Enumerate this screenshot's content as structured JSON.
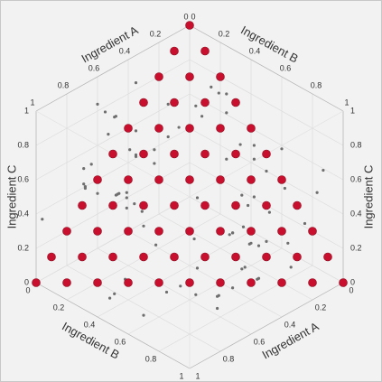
{
  "chart_data": {
    "type": "scatter3d",
    "x_label": "Ingredient A",
    "y_label": "Ingredient B",
    "z_label": "Ingredient C",
    "xlim": [
      0,
      1
    ],
    "ylim": [
      0,
      1
    ],
    "zlim": [
      0,
      1
    ],
    "xticks": [
      0,
      0.2,
      0.4,
      0.6,
      0.8,
      1
    ],
    "yticks": [
      0,
      0.2,
      0.4,
      0.6,
      0.8,
      1
    ],
    "zticks": [
      0,
      0.2,
      0.4,
      0.6,
      0.8,
      1
    ],
    "grid": true,
    "series": [
      {
        "color": "#6e6e6e",
        "size": 1.6,
        "x": [
          0.12,
          0.85,
          0.43,
          0.67,
          0.29,
          0.91,
          0.05,
          0.56,
          0.38,
          0.74,
          0.18,
          0.62,
          0.95,
          0.33,
          0.47,
          0.81,
          0.09,
          0.26,
          0.71,
          0.53,
          0.15,
          0.88,
          0.41,
          0.64,
          0.02,
          0.77,
          0.35,
          0.58,
          0.93,
          0.21,
          0.49,
          0.69,
          0.11,
          0.84,
          0.31,
          0.6,
          0.97,
          0.44,
          0.07,
          0.73,
          0.27,
          0.52,
          0.86,
          0.17,
          0.66,
          0.39,
          0.79,
          0.04,
          0.55,
          0.24,
          0.9,
          0.46,
          0.13,
          0.7,
          0.36,
          0.82,
          0.2,
          0.59,
          0.99,
          0.32,
          0.5,
          0.76,
          0.08,
          0.63,
          0.42,
          0.87,
          0.25,
          0.57,
          0.14,
          0.94,
          0.37,
          0.68,
          0.03,
          0.8,
          0.45,
          0.61,
          0.23,
          0.89,
          0.34,
          0.72
        ],
        "y": [
          0.54,
          0.21,
          0.88,
          0.07,
          0.63,
          0.39,
          0.92,
          0.15,
          0.71,
          0.33,
          0.46,
          0.98,
          0.26,
          0.59,
          0.12,
          0.84,
          0.37,
          0.68,
          0.03,
          0.77,
          0.5,
          0.19,
          0.81,
          0.41,
          0.66,
          0.09,
          0.95,
          0.28,
          0.57,
          0.73,
          0.14,
          0.87,
          0.35,
          0.62,
          0.24,
          0.79,
          0.01,
          0.48,
          0.9,
          0.31,
          0.69,
          0.06,
          0.55,
          0.83,
          0.17,
          0.44,
          0.97,
          0.23,
          0.6,
          0.38,
          0.75,
          0.11,
          0.52,
          0.29,
          0.86,
          0.43,
          0.65,
          0.04,
          0.93,
          0.18,
          0.36,
          0.8,
          0.58,
          0.1,
          0.7,
          0.27,
          0.49,
          0.91,
          0.22,
          0.64,
          0.02,
          0.45,
          0.78,
          0.32,
          0.89,
          0.13,
          0.61,
          0.4,
          0.96,
          0.25
        ],
        "z": [
          0.33,
          0.72,
          0.18,
          0.91,
          0.47,
          0.06,
          0.64,
          0.29,
          0.85,
          0.53,
          0.11,
          0.39,
          0.77,
          0.24,
          0.96,
          0.58,
          0.02,
          0.69,
          0.42,
          0.87,
          0.15,
          0.61,
          0.34,
          0.8,
          0.07,
          0.49,
          0.93,
          0.26,
          0.71,
          0.38,
          0.56,
          0.2,
          0.83,
          0.45,
          0.68,
          0.12,
          0.36,
          0.99,
          0.51,
          0.04,
          0.78,
          0.31,
          0.62,
          0.09,
          0.88,
          0.41,
          0.23,
          0.74,
          0.16,
          0.95,
          0.27,
          0.67,
          0.05,
          0.52,
          0.35,
          0.9,
          0.14,
          0.81,
          0.44,
          0.6,
          0.97,
          0.21,
          0.48,
          0.73,
          0.03,
          0.59,
          0.86,
          0.32,
          0.65,
          0.1,
          0.43,
          0.76,
          0.25,
          0.57,
          0.19,
          0.84,
          0.37,
          0.08,
          0.7,
          0.5
        ]
      },
      {
        "color": "#c8102e",
        "size": 4.5,
        "x": [
          0,
          0,
          0.1,
          0,
          0.1,
          0.2,
          0,
          0.1,
          0.2,
          0.3,
          0,
          0.1,
          0.2,
          0.3,
          0.4,
          0,
          0.1,
          0.2,
          0.3,
          0.4,
          0.5,
          0,
          0.1,
          0.2,
          0.3,
          0.4,
          0.5,
          0.6,
          0,
          0.1,
          0.2,
          0.3,
          0.4,
          0.5,
          0.6,
          0.7,
          0,
          0.1,
          0.2,
          0.3,
          0.4,
          0.5,
          0.6,
          0.7,
          0.8,
          0,
          0.1,
          0.2,
          0.3,
          0.4,
          0.5,
          0.6,
          0.7,
          0.8,
          0.9,
          0,
          0.1,
          0.2,
          0.3,
          0.4,
          0.5,
          0.6,
          0.7,
          0.8,
          0.9,
          1
        ],
        "y": [
          0,
          0.1,
          0,
          0.2,
          0.1,
          0,
          0.3,
          0.2,
          0.1,
          0,
          0.4,
          0.3,
          0.2,
          0.1,
          0,
          0.5,
          0.4,
          0.3,
          0.2,
          0.1,
          0,
          0.6,
          0.5,
          0.4,
          0.3,
          0.2,
          0.1,
          0,
          0.7,
          0.6,
          0.5,
          0.4,
          0.3,
          0.2,
          0.1,
          0,
          0.8,
          0.7,
          0.6,
          0.5,
          0.4,
          0.3,
          0.2,
          0.1,
          0,
          0.9,
          0.8,
          0.7,
          0.6,
          0.5,
          0.4,
          0.3,
          0.2,
          0.1,
          0,
          1,
          0.9,
          0.8,
          0.7,
          0.6,
          0.5,
          0.4,
          0.3,
          0.2,
          0.1,
          0
        ],
        "z": [
          1,
          0.9,
          0.9,
          0.8,
          0.8,
          0.8,
          0.7,
          0.7,
          0.7,
          0.7,
          0.6,
          0.6,
          0.6,
          0.6,
          0.6,
          0.5,
          0.5,
          0.5,
          0.5,
          0.5,
          0.5,
          0.4,
          0.4,
          0.4,
          0.4,
          0.4,
          0.4,
          0.4,
          0.3,
          0.3,
          0.3,
          0.3,
          0.3,
          0.3,
          0.3,
          0.3,
          0.2,
          0.2,
          0.2,
          0.2,
          0.2,
          0.2,
          0.2,
          0.2,
          0.2,
          0.1,
          0.1,
          0.1,
          0.1,
          0.1,
          0.1,
          0.1,
          0.1,
          0.1,
          0.1,
          0,
          0,
          0,
          0,
          0,
          0,
          0,
          0,
          0,
          0,
          0
        ]
      }
    ]
  }
}
